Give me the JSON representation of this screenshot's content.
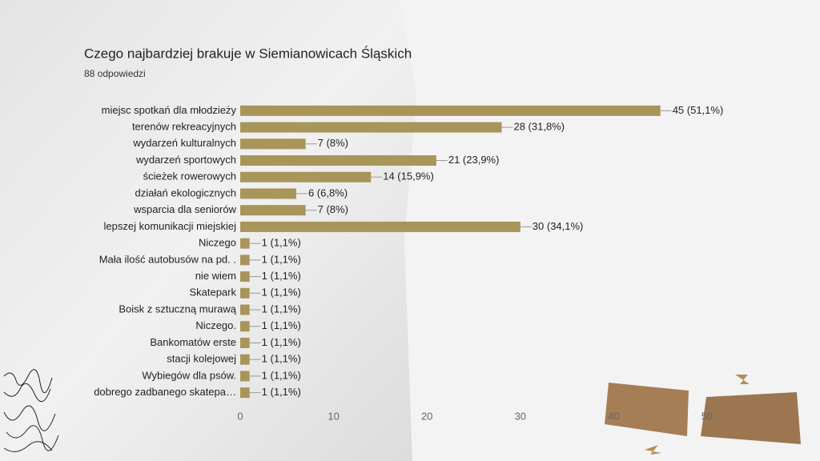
{
  "chart_data": {
    "type": "bar",
    "orientation": "horizontal",
    "title": "Czego najbardziej brakuje w Siemianowicach Śląskich",
    "subtitle": "88 odpowiedzi",
    "categories": [
      "miejsc spotkań dla młodzieży",
      "terenów rekreacyjnych",
      "wydarzeń kulturalnych",
      "wydarzeń sportowych",
      "ścieżek rowerowych",
      "działań ekologicznych",
      "wsparcia dla seniorów",
      "lepszej komunikacji miejskiej",
      "Niczego",
      "Mała ilość autobusów na pd. .",
      "nie wiem",
      "Skatepark",
      "Boisk z sztuczną murawą",
      "Niczego.",
      "Bankomatów erste",
      "stacji kolejowej",
      "Wybiegów dla psów.",
      "dobrego zadbanego skatepa…"
    ],
    "values": [
      45,
      28,
      7,
      21,
      14,
      6,
      7,
      30,
      1,
      1,
      1,
      1,
      1,
      1,
      1,
      1,
      1,
      1
    ],
    "value_labels": [
      "45 (51,1%)",
      "28 (31,8%)",
      "7 (8%)",
      "21 (23,9%)",
      "14 (15,9%)",
      "6 (6,8%)",
      "7 (8%)",
      "30 (34,1%)",
      "1 (1,1%)",
      "1 (1,1%)",
      "1 (1,1%)",
      "1 (1,1%)",
      "1 (1,1%)",
      "1 (1,1%)",
      "1 (1,1%)",
      "1 (1,1%)",
      "1 (1,1%)",
      "1 (1,1%)"
    ],
    "color": "#a8955a",
    "xlim": [
      0,
      50
    ],
    "xticks": [
      0,
      10,
      20,
      30,
      40,
      50
    ]
  }
}
